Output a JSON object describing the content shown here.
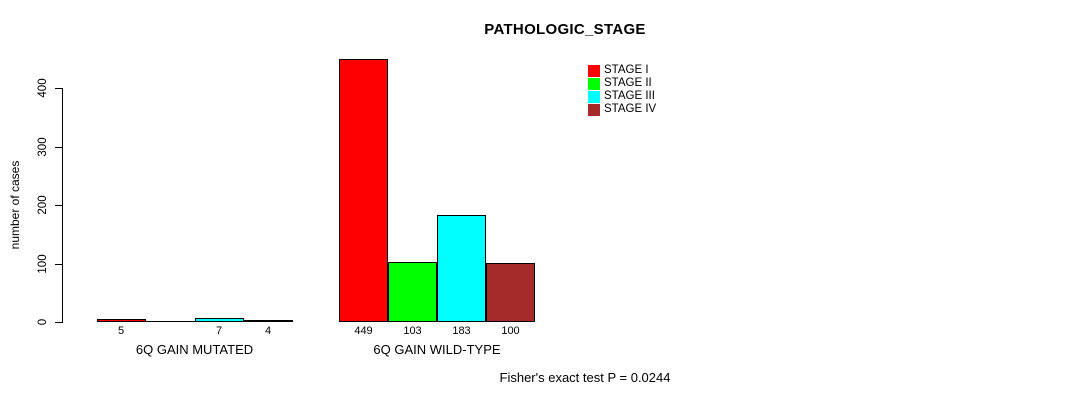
{
  "chart_data": {
    "type": "bar",
    "title": "PATHOLOGIC_STAGE",
    "ylabel": "number of cases",
    "ylim": [
      0,
      449
    ],
    "yticks": [
      0,
      100,
      200,
      300,
      400
    ],
    "grid": false,
    "legend_position": "top-right-inside",
    "categories": [
      "6Q GAIN MUTATED",
      "6Q GAIN WILD-TYPE"
    ],
    "series": [
      {
        "name": "STAGE I",
        "color": "#ff0000",
        "values": [
          5,
          449
        ]
      },
      {
        "name": "STAGE II",
        "color": "#00ff00",
        "values": [
          0,
          103
        ]
      },
      {
        "name": "STAGE III",
        "color": "#00ffff",
        "values": [
          7,
          183
        ]
      },
      {
        "name": "STAGE IV",
        "color": "#a52a2a",
        "values": [
          4,
          100
        ]
      }
    ],
    "bar_value_labels": [
      [
        "5",
        "",
        "7",
        "4"
      ],
      [
        "449",
        "103",
        "183",
        "100"
      ]
    ],
    "footnote": "Fisher's exact test P = 0.0244",
    "background": "#ffffff",
    "text_color": "#000000"
  }
}
